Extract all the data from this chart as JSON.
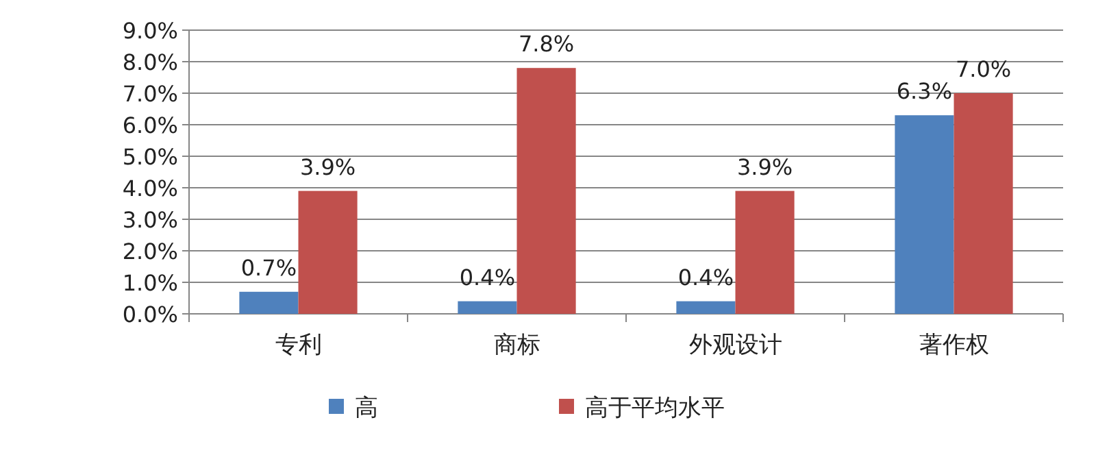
{
  "chart_data": {
    "type": "bar",
    "categories": [
      "专利",
      "商标",
      "外观设计",
      "著作权"
    ],
    "series": [
      {
        "name": "高",
        "color": "#4f81bd",
        "values": [
          0.7,
          0.4,
          0.4,
          6.3
        ],
        "value_labels": [
          "0.7%",
          "0.4%",
          "0.4%",
          "6.3%"
        ]
      },
      {
        "name": "高于平均水平",
        "color": "#c0504d",
        "values": [
          3.9,
          7.8,
          3.9,
          7.0
        ],
        "value_labels": [
          "3.9%",
          "7.8%",
          "3.9%",
          "7.0%"
        ]
      }
    ],
    "ylim": [
      0,
      9
    ],
    "yticks": [
      {
        "value": 0,
        "label": "0.0%"
      },
      {
        "value": 1,
        "label": "1.0%"
      },
      {
        "value": 2,
        "label": "2.0%"
      },
      {
        "value": 3,
        "label": "3.0%"
      },
      {
        "value": 4,
        "label": "4.0%"
      },
      {
        "value": 5,
        "label": "5.0%"
      },
      {
        "value": 6,
        "label": "6.0%"
      },
      {
        "value": 7,
        "label": "7.0%"
      },
      {
        "value": 8,
        "label": "8.0%"
      },
      {
        "value": 9,
        "label": "9.0%"
      }
    ],
    "grid": "y",
    "legend": "bottom"
  }
}
